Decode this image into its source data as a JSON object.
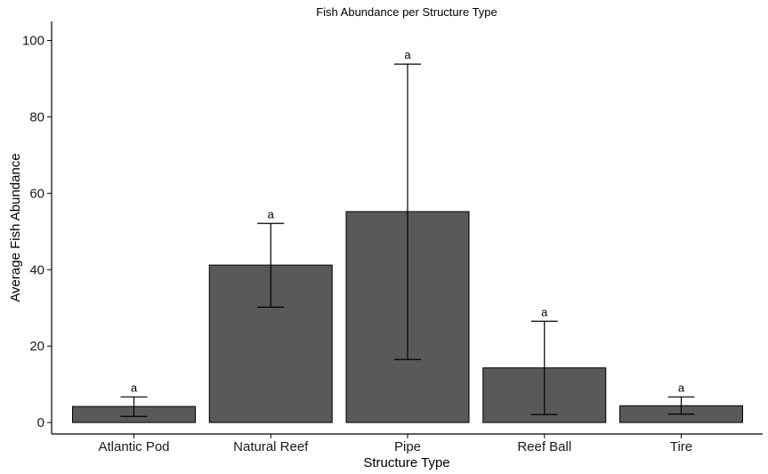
{
  "chart_data": {
    "type": "bar",
    "title": "Fish Abundance per Structure Type",
    "xlabel": "Structure Type",
    "ylabel": "Average Fish Abundance",
    "categories": [
      "Atlantic Pod",
      "Natural Reef",
      "Pipe",
      "Reef Ball",
      "Tire"
    ],
    "values": [
      4.2,
      41.2,
      55.2,
      14.3,
      4.4
    ],
    "error_lower": [
      1.6,
      30.2,
      16.5,
      2.1,
      2.2
    ],
    "error_upper": [
      6.7,
      52.1,
      93.8,
      26.5,
      6.7
    ],
    "significance_labels": [
      "a",
      "a",
      "a",
      "a",
      "a"
    ],
    "ylim": [
      -3,
      105
    ],
    "yticks": [
      0,
      20,
      40,
      60,
      80,
      100
    ],
    "grid": false,
    "bar_color": "#595959",
    "bar_edge_color": "#000000"
  }
}
